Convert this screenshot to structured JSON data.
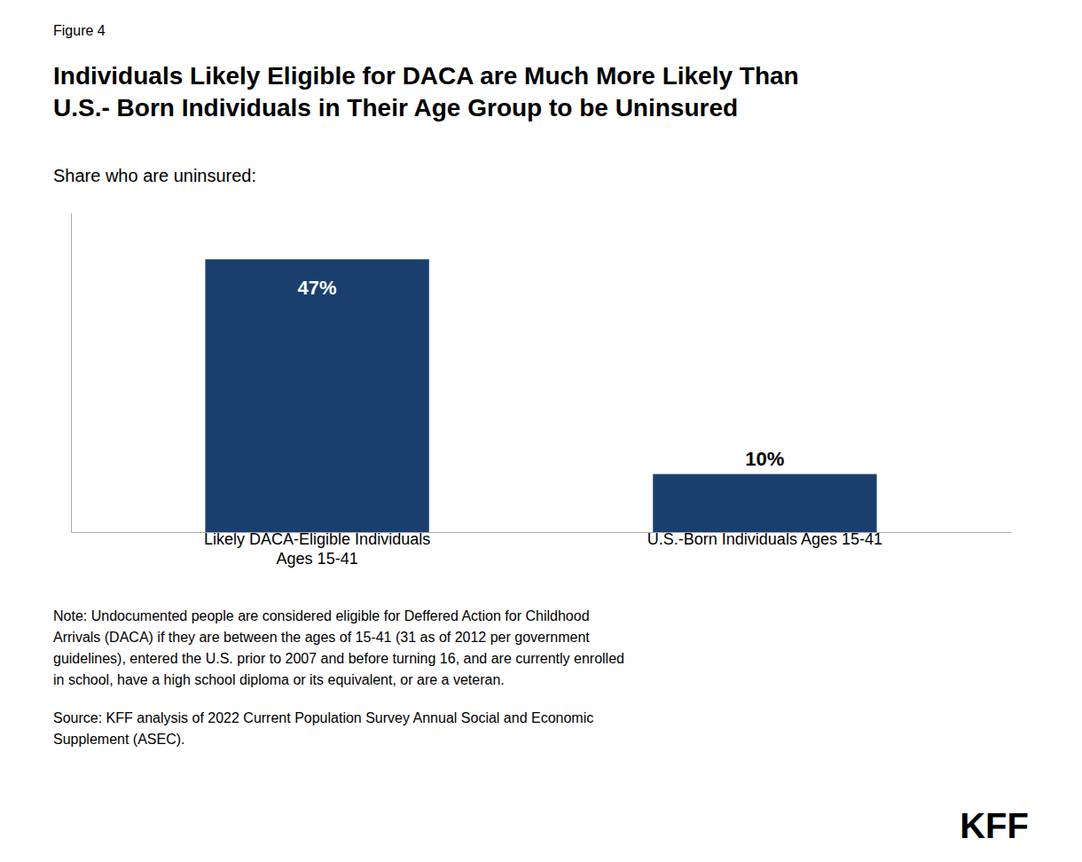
{
  "chart_data": {
    "type": "bar",
    "title": "Individuals Likely Eligible for DACA are Much More Likely Than\nU.S.- Born Individuals in Their Age Group to be Uninsured",
    "subtitle": "Share who are uninsured:",
    "categories": [
      "Likely DACA-Eligible Individuals\nAges 15-41",
      "U.S.-Born Individuals Ages 15-41"
    ],
    "values": [
      47,
      10
    ],
    "value_labels": [
      "47%",
      "10%"
    ],
    "color": "#1a3f6f",
    "ylim": [
      0,
      55
    ],
    "data_labels": true,
    "tick_labels": "x",
    "grid": false,
    "annotations": [
      "Figure 4",
      "Note: Undocumented people are considered eligible for Deffered Action for Childhood\nArrivals (DACA) if they are between the ages of 15-41 (31 as of 2012 per government\nguidelines), entered the U.S. prior to 2007 and before turning 16, and are currently enrolled\nin school, have a high school diploma or its equivalent, or are a veteran.",
      "Source: KFF analysis of 2022 Current Population Survey Annual Social and Economic\nSupplement (ASEC).",
      "KFF"
    ]
  }
}
